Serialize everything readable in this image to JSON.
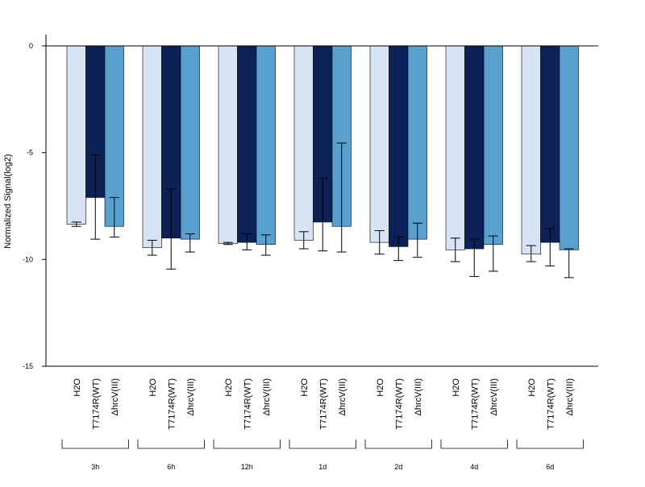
{
  "chart_data": {
    "type": "bar",
    "title": "",
    "xlabel": "",
    "ylabel": "Normalized Signal(log2)",
    "ylim": [
      -15,
      0.5
    ],
    "yticks": [
      0,
      -5,
      -10,
      -15
    ],
    "ytick_labels": [
      "0",
      "-5",
      "-10",
      "-15"
    ],
    "groups": [
      "3h",
      "6h",
      "12h",
      "1d",
      "2d",
      "4d",
      "6d"
    ],
    "conditions": [
      "H2O",
      "T7174R(WT)",
      "ΔhrcV(III)"
    ],
    "series": [
      {
        "name": "H2O",
        "color": "#d6e4f5",
        "values": [
          -8.35,
          -9.45,
          -9.25,
          -9.1,
          -9.2,
          -9.55,
          -9.75
        ],
        "err_low": [
          -8.45,
          -9.8,
          -9.3,
          -9.5,
          -9.75,
          -10.1,
          -10.1
        ],
        "err_high": [
          -8.25,
          -9.1,
          -9.2,
          -8.7,
          -8.65,
          -9.0,
          -9.35
        ]
      },
      {
        "name": "T7174R(WT)",
        "color": "#0b2157",
        "values": [
          -7.1,
          -9.0,
          -9.2,
          -8.25,
          -9.4,
          -9.5,
          -9.2
        ],
        "err_low": [
          -9.05,
          -10.45,
          -9.55,
          -9.6,
          -10.05,
          -10.8,
          -10.3
        ],
        "err_high": [
          -5.1,
          -6.7,
          -8.8,
          -6.2,
          -8.95,
          -9.05,
          -8.55
        ]
      },
      {
        "name": "ΔhrcV(III)",
        "color": "#5aa0cf",
        "values": [
          -8.45,
          -9.05,
          -9.3,
          -8.45,
          -9.05,
          -9.3,
          -9.55
        ],
        "err_low": [
          -8.95,
          -9.65,
          -9.8,
          -9.65,
          -9.9,
          -10.55,
          -10.85
        ],
        "err_high": [
          -7.1,
          -8.8,
          -8.85,
          -4.55,
          -8.3,
          -8.9,
          -9.5
        ]
      }
    ]
  }
}
